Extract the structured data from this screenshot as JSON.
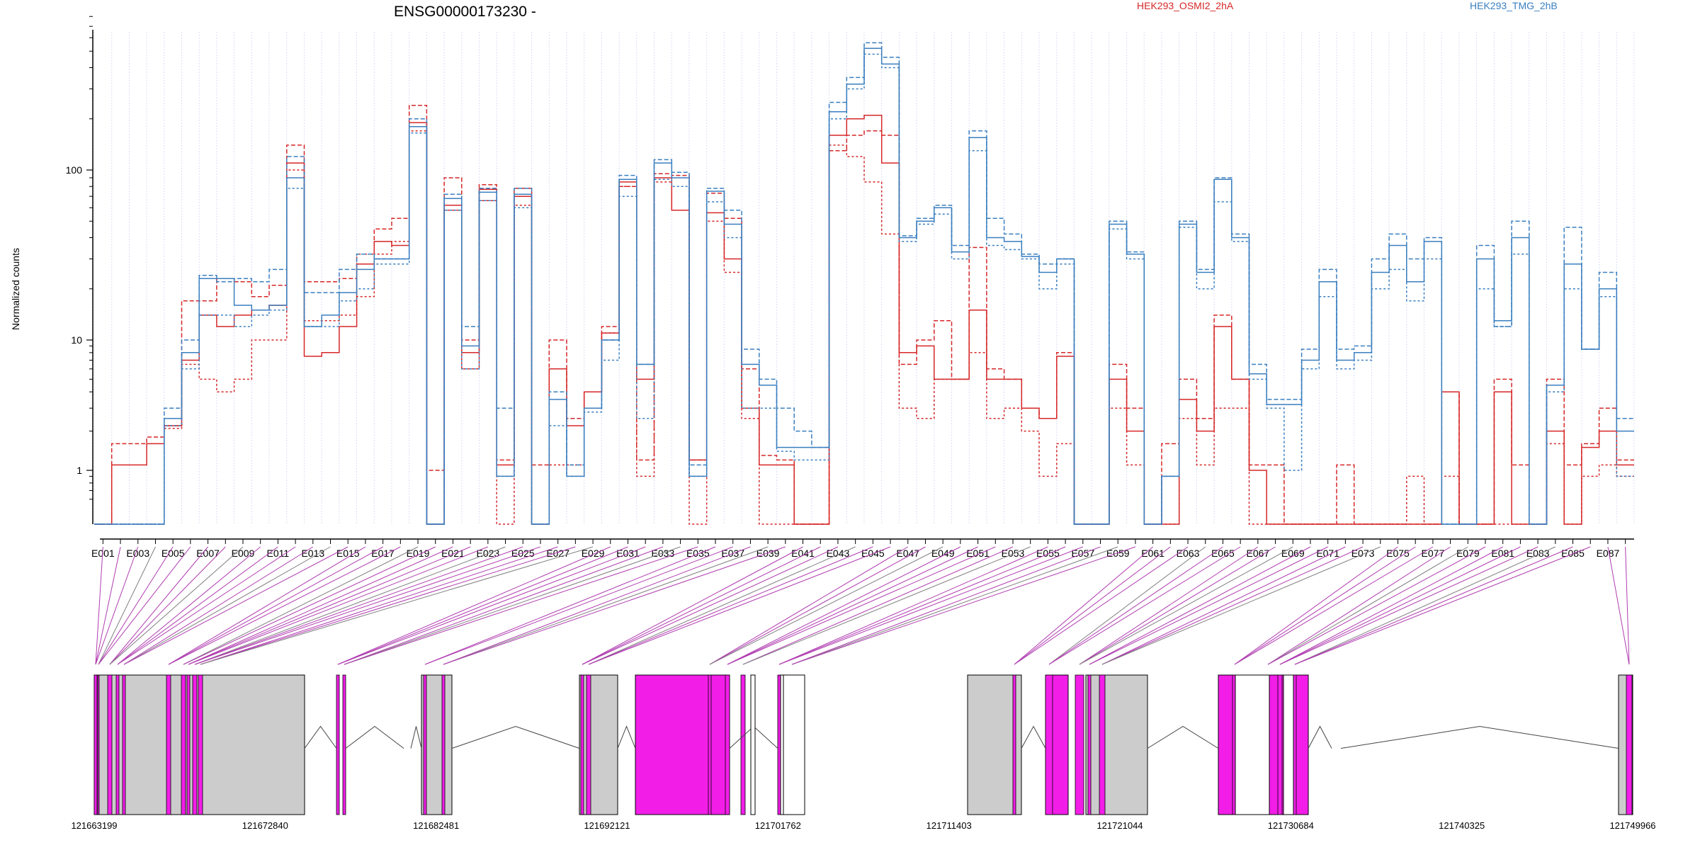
{
  "chart_data": {
    "type": "line",
    "title": "ENSG00000173230 -",
    "ylabel": "Normalized counts",
    "y_scale": "log",
    "yticks": [
      1,
      10,
      100
    ],
    "ytick_labels": [
      "1",
      "10",
      "100"
    ],
    "y_floor_value": 0.5,
    "ylim": [
      0.5,
      800
    ],
    "exons": [
      "E001",
      "E002",
      "E003",
      "E004",
      "E005",
      "E006",
      "E007",
      "E008",
      "E009",
      "E010",
      "E011",
      "E012",
      "E013",
      "E014",
      "E015",
      "E016",
      "E017",
      "E018",
      "E019",
      "E020",
      "E021",
      "E022",
      "E023",
      "E024",
      "E025",
      "E026",
      "E027",
      "E028",
      "E029",
      "E030",
      "E031",
      "E032",
      "E033",
      "E034",
      "E035",
      "E036",
      "E037",
      "E038",
      "E039",
      "E040",
      "E041",
      "E042",
      "E043",
      "E044",
      "E045",
      "E046",
      "E047",
      "E048",
      "E049",
      "E050",
      "E051",
      "E052",
      "E053",
      "E054",
      "E055",
      "E056",
      "E057",
      "E058",
      "E059",
      "E060",
      "E061",
      "E062",
      "E063",
      "E064",
      "E065",
      "E066",
      "E067",
      "E068",
      "E069",
      "E070",
      "E071",
      "E072",
      "E073",
      "E074",
      "E075",
      "E076",
      "E077",
      "E078",
      "E079",
      "E080",
      "E081",
      "E082",
      "E083",
      "E084",
      "E085",
      "E086",
      "E087",
      "E088"
    ],
    "exon_label_every": 2,
    "legend": [
      {
        "name": "HEK293_OSMI2_2hA",
        "color": "#d62728"
      },
      {
        "name": "HEK293_TMG_2hB",
        "color": "#3a7fc0"
      }
    ],
    "series": [
      {
        "name": "HEK293_OSMI2_2hA",
        "color": "#d62728",
        "dash": "6,3",
        "values": [
          0.5,
          1.6,
          1.6,
          1.8,
          2.2,
          17,
          17,
          23,
          22,
          18,
          21,
          140,
          22,
          22,
          23,
          32,
          45,
          52,
          240,
          1.0,
          90,
          10,
          82,
          1.2,
          78,
          1.1,
          10,
          2.5,
          4,
          12,
          80,
          1.2,
          95,
          93,
          1.2,
          73,
          52,
          6,
          1.3,
          1.2,
          0.5,
          0.5,
          130,
          160,
          170,
          160,
          6.5,
          10,
          13,
          5,
          35,
          6,
          5,
          3,
          2.5,
          8,
          0.5,
          0.5,
          6.5,
          3,
          0.5,
          1.6,
          5,
          2.5,
          14,
          5,
          1.1,
          1.1,
          0.5,
          0.5,
          0.5,
          1.1,
          0.5,
          0.5,
          0.5,
          0.5,
          0.5,
          4,
          0.5,
          0.5,
          5,
          1.1,
          0.5,
          5,
          1.1,
          1.6,
          3,
          1.2
        ]
      },
      {
        "name": "HEK293_OSMI2_2hA",
        "color": "#d62728",
        "dash": "",
        "values": [
          0.5,
          1.1,
          1.1,
          1.6,
          2.2,
          7,
          14,
          12,
          14,
          15,
          16,
          110,
          7.5,
          8,
          12,
          28,
          38,
          36,
          190,
          0.5,
          62,
          8,
          77,
          1.1,
          70,
          0.5,
          6,
          2.2,
          4,
          11,
          85,
          5,
          90,
          58,
          1.2,
          56,
          30,
          3,
          1.1,
          1.1,
          0.5,
          0.5,
          160,
          200,
          210,
          110,
          8,
          9,
          5,
          5,
          15,
          5,
          5,
          3,
          2.5,
          7.5,
          0.5,
          0.5,
          5,
          2,
          0.5,
          0.5,
          3.5,
          2,
          12,
          5,
          1.0,
          0.5,
          0.5,
          0.5,
          0.5,
          0.5,
          0.5,
          0.5,
          0.5,
          0.5,
          0.5,
          4,
          0.5,
          0.5,
          4,
          0.5,
          0.5,
          2,
          0.5,
          1.5,
          2,
          1.1
        ]
      },
      {
        "name": "HEK293_OSMI2_2hA",
        "color": "#d62728",
        "dash": "3,3",
        "values": [
          0.5,
          0.5,
          0.5,
          0.5,
          2.1,
          6.5,
          5,
          4,
          5,
          10,
          10,
          100,
          13,
          13,
          14,
          18,
          32,
          38,
          170,
          0.5,
          58,
          6,
          66,
          0.5,
          62,
          0.5,
          1.1,
          1.1,
          4,
          11,
          80,
          0.9,
          85,
          58,
          0.5,
          50,
          25,
          2.5,
          0.5,
          0.5,
          0.5,
          0.5,
          140,
          120,
          85,
          42,
          3,
          2.5,
          5,
          5,
          8,
          2.5,
          3,
          2,
          0.9,
          1.6,
          0.5,
          0.5,
          3,
          1.1,
          0.5,
          0.5,
          2.5,
          1.1,
          3,
          3,
          0.5,
          0.5,
          0.5,
          0.5,
          0.5,
          0.5,
          0.5,
          0.5,
          0.5,
          0.9,
          0.5,
          0.9,
          0.5,
          0.5,
          0.5,
          0.5,
          0.5,
          1.6,
          0.5,
          0.9,
          1.1,
          0.9
        ]
      },
      {
        "name": "HEK293_TMG_2hB",
        "color": "#3a7fc0",
        "dash": "6,3",
        "values": [
          0.5,
          0.5,
          0.5,
          0.5,
          3,
          10,
          24,
          22,
          23,
          22,
          26,
          120,
          19,
          19,
          26,
          32,
          30,
          30,
          200,
          0.5,
          72,
          12,
          78,
          3,
          78,
          0.5,
          4,
          1.1,
          3,
          10,
          93,
          6.5,
          115,
          97,
          1.1,
          78,
          58,
          8.5,
          5,
          3,
          2,
          1.5,
          250,
          350,
          560,
          460,
          41,
          52,
          62,
          36,
          170,
          52,
          42,
          32,
          28,
          30,
          0.5,
          0.5,
          50,
          33,
          0.5,
          0.9,
          50,
          26,
          90,
          42,
          6.5,
          3.5,
          3.5,
          8.5,
          26,
          8.5,
          9,
          30,
          42,
          30,
          40,
          0.5,
          0.5,
          36,
          12,
          50,
          0.5,
          4.5,
          46,
          8.5,
          25,
          2.5
        ]
      },
      {
        "name": "HEK293_TMG_2hB",
        "color": "#3a7fc0",
        "dash": "",
        "values": [
          0.5,
          0.5,
          0.5,
          0.5,
          2.5,
          8,
          23,
          23,
          16,
          15,
          16,
          90,
          12,
          14,
          19,
          26,
          30,
          30,
          180,
          0.5,
          68,
          9,
          74,
          0.9,
          72,
          0.5,
          3.5,
          0.9,
          3,
          10,
          88,
          6.5,
          110,
          90,
          0.9,
          75,
          48,
          6.5,
          4.5,
          1.5,
          1.5,
          1.5,
          220,
          320,
          520,
          420,
          40,
          50,
          60,
          33,
          155,
          40,
          38,
          31,
          25,
          30,
          0.5,
          0.5,
          48,
          32,
          0.5,
          0.9,
          48,
          25,
          88,
          40,
          5.5,
          3.2,
          3.2,
          7,
          22,
          7,
          8,
          25,
          36,
          22,
          38,
          0.5,
          0.5,
          30,
          13,
          40,
          0.5,
          4.5,
          28,
          8.5,
          20,
          2
        ]
      },
      {
        "name": "HEK293_TMG_2hB",
        "color": "#3a7fc0",
        "dash": "3,3",
        "values": [
          0.5,
          0.5,
          0.5,
          0.5,
          2.2,
          6,
          14,
          14,
          12,
          14,
          15,
          78,
          12,
          12,
          17,
          20,
          28,
          28,
          165,
          0.5,
          58,
          6,
          66,
          0.9,
          60,
          0.5,
          2.2,
          0.9,
          2.8,
          7,
          70,
          2.5,
          88,
          80,
          0.9,
          65,
          40,
          3,
          3,
          1.4,
          1.2,
          1.2,
          200,
          300,
          480,
          400,
          38,
          48,
          55,
          30,
          130,
          36,
          34,
          30,
          20,
          28,
          0.5,
          0.5,
          45,
          30,
          0.5,
          0.9,
          46,
          20,
          65,
          38,
          5,
          3,
          1,
          6,
          18,
          6,
          7,
          20,
          26,
          17,
          30,
          0.5,
          0.5,
          20,
          12,
          32,
          0.5,
          4,
          20,
          8.5,
          18,
          0.9
        ]
      }
    ],
    "genomic_ticks": [
      "121663199",
      "121672840",
      "121682481",
      "121692121",
      "121701762",
      "121711403",
      "121721044",
      "121730684",
      "121740325",
      "121749966"
    ],
    "gene_model_exon_colors": {
      "gray": "#cccccc",
      "magenta": "#f21ee8"
    }
  }
}
